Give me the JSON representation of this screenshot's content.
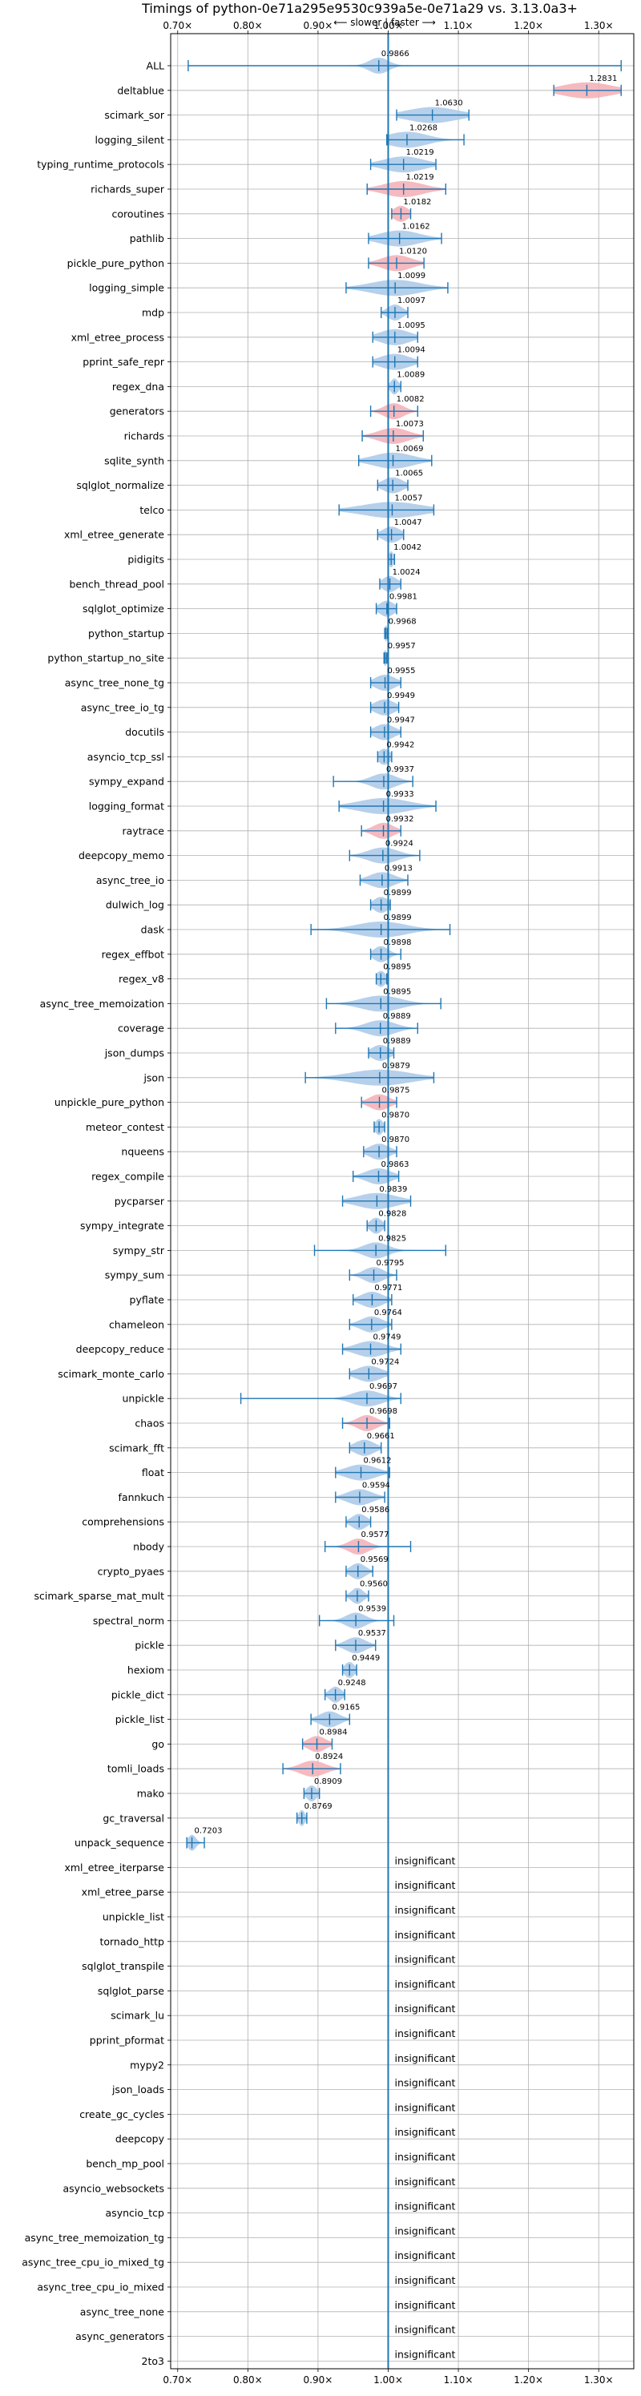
{
  "chart_data": {
    "type": "violin",
    "title": "Timings of python-0e71a295e9530c939a5e-0e71a29 vs. 3.13.0a3+",
    "subtitle": "⟵ slower | faster ⟶",
    "xlim": [
      0.69,
      1.35
    ],
    "xticks": [
      0.7,
      0.8,
      0.9,
      1.0,
      1.1,
      1.2,
      1.3
    ],
    "xtick_labels": [
      "0.70×",
      "0.80×",
      "0.90×",
      "1.00×",
      "1.10×",
      "1.20×",
      "1.30×"
    ],
    "reference_line": 1.0,
    "grid": true,
    "colors": {
      "faster": "#a9c8e8",
      "slower": "#f3aeb4",
      "line": "#1f77b4"
    },
    "benchmarks": [
      {
        "name": "ALL",
        "value": 0.9866,
        "min": 0.715,
        "max": 1.332,
        "color": "faster",
        "spread": 0.02,
        "label": "0.9866"
      },
      {
        "name": "deltablue",
        "value": 1.2831,
        "min": 1.236,
        "max": 1.332,
        "color": "slower",
        "spread": 0.05,
        "label": "1.2831"
      },
      {
        "name": "scimark_sor",
        "value": 1.063,
        "min": 1.012,
        "max": 1.115,
        "color": "faster",
        "spread": 0.05,
        "label": "1.0630"
      },
      {
        "name": "logging_silent",
        "value": 1.0268,
        "min": 0.998,
        "max": 1.108,
        "color": "faster",
        "spread": 0.04,
        "label": "1.0268"
      },
      {
        "name": "typing_runtime_protocols",
        "value": 1.0219,
        "min": 0.975,
        "max": 1.068,
        "color": "faster",
        "spread": 0.04,
        "label": "1.0219"
      },
      {
        "name": "richards_super",
        "value": 1.0219,
        "min": 0.97,
        "max": 1.082,
        "color": "slower",
        "spread": 0.04,
        "label": "1.0219"
      },
      {
        "name": "coroutines",
        "value": 1.0182,
        "min": 1.005,
        "max": 1.032,
        "color": "slower",
        "spread": 0.015,
        "label": "1.0182"
      },
      {
        "name": "pathlib",
        "value": 1.0162,
        "min": 0.972,
        "max": 1.076,
        "color": "faster",
        "spread": 0.04,
        "label": "1.0162"
      },
      {
        "name": "pickle_pure_python",
        "value": 1.012,
        "min": 0.972,
        "max": 1.051,
        "color": "slower",
        "spread": 0.03,
        "label": "1.0120"
      },
      {
        "name": "logging_simple",
        "value": 1.0099,
        "min": 0.94,
        "max": 1.085,
        "color": "faster",
        "spread": 0.05,
        "label": "1.0099"
      },
      {
        "name": "mdp",
        "value": 1.0097,
        "min": 0.99,
        "max": 1.028,
        "color": "faster",
        "spread": 0.015,
        "label": "1.0097"
      },
      {
        "name": "xml_etree_process",
        "value": 1.0095,
        "min": 0.978,
        "max": 1.042,
        "color": "faster",
        "spread": 0.03,
        "label": "1.0095"
      },
      {
        "name": "pprint_safe_repr",
        "value": 1.0094,
        "min": 0.978,
        "max": 1.042,
        "color": "faster",
        "spread": 0.03,
        "label": "1.0094"
      },
      {
        "name": "regex_dna",
        "value": 1.0089,
        "min": 1.0,
        "max": 1.018,
        "color": "faster",
        "spread": 0.008,
        "label": "1.0089"
      },
      {
        "name": "generators",
        "value": 1.0082,
        "min": 0.975,
        "max": 1.042,
        "color": "slower",
        "spread": 0.02,
        "label": "1.0082"
      },
      {
        "name": "richards",
        "value": 1.0073,
        "min": 0.963,
        "max": 1.05,
        "color": "slower",
        "spread": 0.03,
        "label": "1.0073"
      },
      {
        "name": "sqlite_synth",
        "value": 1.0069,
        "min": 0.958,
        "max": 1.062,
        "color": "faster",
        "spread": 0.04,
        "label": "1.0069"
      },
      {
        "name": "sqlglot_normalize",
        "value": 1.0065,
        "min": 0.985,
        "max": 1.028,
        "color": "faster",
        "spread": 0.02,
        "label": "1.0065"
      },
      {
        "name": "telco",
        "value": 1.0057,
        "min": 0.93,
        "max": 1.065,
        "color": "faster",
        "spread": 0.06,
        "label": "1.0057"
      },
      {
        "name": "xml_etree_generate",
        "value": 1.0047,
        "min": 0.985,
        "max": 1.022,
        "color": "faster",
        "spread": 0.018,
        "label": "1.0047"
      },
      {
        "name": "pidigits",
        "value": 1.0042,
        "min": 1.0,
        "max": 1.009,
        "color": "faster",
        "spread": 0.005,
        "label": "1.0042"
      },
      {
        "name": "bench_thread_pool",
        "value": 1.0024,
        "min": 0.988,
        "max": 1.018,
        "color": "faster",
        "spread": 0.015,
        "label": "1.0024"
      },
      {
        "name": "sqlglot_optimize",
        "value": 0.9981,
        "min": 0.983,
        "max": 1.012,
        "color": "faster",
        "spread": 0.015,
        "label": "0.9981"
      },
      {
        "name": "python_startup",
        "value": 0.9968,
        "min": 0.995,
        "max": 0.999,
        "color": "faster",
        "spread": 0.003,
        "label": "0.9968"
      },
      {
        "name": "python_startup_no_site",
        "value": 0.9957,
        "min": 0.994,
        "max": 0.998,
        "color": "faster",
        "spread": 0.003,
        "label": "0.9957"
      },
      {
        "name": "async_tree_none_tg",
        "value": 0.9955,
        "min": 0.975,
        "max": 1.018,
        "color": "faster",
        "spread": 0.02,
        "label": "0.9955"
      },
      {
        "name": "async_tree_io_tg",
        "value": 0.9949,
        "min": 0.975,
        "max": 1.015,
        "color": "faster",
        "spread": 0.02,
        "label": "0.9949"
      },
      {
        "name": "docutils",
        "value": 0.9947,
        "min": 0.975,
        "max": 1.018,
        "color": "faster",
        "spread": 0.02,
        "label": "0.9947"
      },
      {
        "name": "asyncio_tcp_ssl",
        "value": 0.9942,
        "min": 0.985,
        "max": 1.005,
        "color": "faster",
        "spread": 0.012,
        "label": "0.9942"
      },
      {
        "name": "sympy_expand",
        "value": 0.9937,
        "min": 0.922,
        "max": 1.035,
        "color": "faster",
        "spread": 0.025,
        "label": "0.9937"
      },
      {
        "name": "logging_format",
        "value": 0.9933,
        "min": 0.93,
        "max": 1.068,
        "color": "faster",
        "spread": 0.05,
        "label": "0.9933"
      },
      {
        "name": "raytrace",
        "value": 0.9932,
        "min": 0.962,
        "max": 1.018,
        "color": "slower",
        "spread": 0.02,
        "label": "0.9932"
      },
      {
        "name": "deepcopy_memo",
        "value": 0.9924,
        "min": 0.945,
        "max": 1.045,
        "color": "faster",
        "spread": 0.03,
        "label": "0.9924"
      },
      {
        "name": "async_tree_io",
        "value": 0.9913,
        "min": 0.96,
        "max": 1.028,
        "color": "faster",
        "spread": 0.025,
        "label": "0.9913"
      },
      {
        "name": "dulwich_log",
        "value": 0.9899,
        "min": 0.975,
        "max": 1.003,
        "color": "faster",
        "spread": 0.015,
        "label": "0.9899"
      },
      {
        "name": "dask",
        "value": 0.9899,
        "min": 0.89,
        "max": 1.088,
        "color": "faster",
        "spread": 0.05,
        "label": "0.9899"
      },
      {
        "name": "regex_effbot",
        "value": 0.9898,
        "min": 0.975,
        "max": 1.018,
        "color": "faster",
        "spread": 0.015,
        "label": "0.9898"
      },
      {
        "name": "regex_v8",
        "value": 0.9895,
        "min": 0.983,
        "max": 0.998,
        "color": "faster",
        "spread": 0.01,
        "label": "0.9895"
      },
      {
        "name": "async_tree_memoization",
        "value": 0.9895,
        "min": 0.912,
        "max": 1.075,
        "color": "faster",
        "spread": 0.04,
        "label": "0.9895"
      },
      {
        "name": "coverage",
        "value": 0.9889,
        "min": 0.925,
        "max": 1.042,
        "color": "faster",
        "spread": 0.03,
        "label": "0.9889"
      },
      {
        "name": "json_dumps",
        "value": 0.9889,
        "min": 0.972,
        "max": 1.008,
        "color": "faster",
        "spread": 0.018,
        "label": "0.9889"
      },
      {
        "name": "json",
        "value": 0.9879,
        "min": 0.882,
        "max": 1.065,
        "color": "faster",
        "spread": 0.06,
        "label": "0.9879"
      },
      {
        "name": "unpickle_pure_python",
        "value": 0.9875,
        "min": 0.962,
        "max": 1.012,
        "color": "slower",
        "spread": 0.02,
        "label": "0.9875"
      },
      {
        "name": "meteor_contest",
        "value": 0.987,
        "min": 0.98,
        "max": 0.995,
        "color": "faster",
        "spread": 0.008,
        "label": "0.9870"
      },
      {
        "name": "nqueens",
        "value": 0.987,
        "min": 0.965,
        "max": 1.012,
        "color": "faster",
        "spread": 0.02,
        "label": "0.9870"
      },
      {
        "name": "regex_compile",
        "value": 0.9863,
        "min": 0.95,
        "max": 1.015,
        "color": "faster",
        "spread": 0.025,
        "label": "0.9863"
      },
      {
        "name": "pycparser",
        "value": 0.9839,
        "min": 0.935,
        "max": 1.032,
        "color": "faster",
        "spread": 0.04,
        "label": "0.9839"
      },
      {
        "name": "sympy_integrate",
        "value": 0.9828,
        "min": 0.97,
        "max": 0.995,
        "color": "faster",
        "spread": 0.012,
        "label": "0.9828"
      },
      {
        "name": "sympy_str",
        "value": 0.9825,
        "min": 0.895,
        "max": 1.082,
        "color": "faster",
        "spread": 0.025,
        "label": "0.9825"
      },
      {
        "name": "sympy_sum",
        "value": 0.9795,
        "min": 0.945,
        "max": 1.012,
        "color": "faster",
        "spread": 0.02,
        "label": "0.9795"
      },
      {
        "name": "pyflate",
        "value": 0.9771,
        "min": 0.95,
        "max": 1.005,
        "color": "faster",
        "spread": 0.022,
        "label": "0.9771"
      },
      {
        "name": "chameleon",
        "value": 0.9764,
        "min": 0.945,
        "max": 1.005,
        "color": "faster",
        "spread": 0.022,
        "label": "0.9764"
      },
      {
        "name": "deepcopy_reduce",
        "value": 0.9749,
        "min": 0.935,
        "max": 1.018,
        "color": "faster",
        "spread": 0.03,
        "label": "0.9749"
      },
      {
        "name": "scimark_monte_carlo",
        "value": 0.9724,
        "min": 0.945,
        "max": 1.0,
        "color": "faster",
        "spread": 0.025,
        "label": "0.9724"
      },
      {
        "name": "unpickle",
        "value": 0.9697,
        "min": 0.79,
        "max": 1.018,
        "color": "faster",
        "spread": 0.03,
        "label": "0.9697"
      },
      {
        "name": "chaos",
        "value": 0.9698,
        "min": 0.935,
        "max": 1.002,
        "color": "slower",
        "spread": 0.02,
        "label": "0.9698"
      },
      {
        "name": "scimark_fft",
        "value": 0.9661,
        "min": 0.945,
        "max": 0.99,
        "color": "faster",
        "spread": 0.02,
        "label": "0.9661"
      },
      {
        "name": "float",
        "value": 0.9612,
        "min": 0.925,
        "max": 1.002,
        "color": "faster",
        "spread": 0.03,
        "label": "0.9612"
      },
      {
        "name": "fannkuch",
        "value": 0.9594,
        "min": 0.925,
        "max": 0.995,
        "color": "faster",
        "spread": 0.025,
        "label": "0.9594"
      },
      {
        "name": "comprehensions",
        "value": 0.9586,
        "min": 0.94,
        "max": 0.975,
        "color": "faster",
        "spread": 0.015,
        "label": "0.9586"
      },
      {
        "name": "nbody",
        "value": 0.9577,
        "min": 0.91,
        "max": 1.032,
        "color": "slower",
        "spread": 0.02,
        "label": "0.9577"
      },
      {
        "name": "crypto_pyaes",
        "value": 0.9569,
        "min": 0.94,
        "max": 0.978,
        "color": "faster",
        "spread": 0.015,
        "label": "0.9569"
      },
      {
        "name": "scimark_sparse_mat_mult",
        "value": 0.956,
        "min": 0.94,
        "max": 0.972,
        "color": "faster",
        "spread": 0.012,
        "label": "0.9560"
      },
      {
        "name": "spectral_norm",
        "value": 0.9539,
        "min": 0.902,
        "max": 1.008,
        "color": "faster",
        "spread": 0.02,
        "label": "0.9539"
      },
      {
        "name": "pickle",
        "value": 0.9537,
        "min": 0.925,
        "max": 0.982,
        "color": "faster",
        "spread": 0.02,
        "label": "0.9537"
      },
      {
        "name": "hexiom",
        "value": 0.9449,
        "min": 0.935,
        "max": 0.955,
        "color": "faster",
        "spread": 0.01,
        "label": "0.9449"
      },
      {
        "name": "pickle_dict",
        "value": 0.9248,
        "min": 0.91,
        "max": 0.938,
        "color": "faster",
        "spread": 0.012,
        "label": "0.9248"
      },
      {
        "name": "pickle_list",
        "value": 0.9165,
        "min": 0.89,
        "max": 0.945,
        "color": "faster",
        "spread": 0.02,
        "label": "0.9165"
      },
      {
        "name": "go",
        "value": 0.8984,
        "min": 0.878,
        "max": 0.92,
        "color": "slower",
        "spread": 0.018,
        "label": "0.8984"
      },
      {
        "name": "tomli_loads",
        "value": 0.8924,
        "min": 0.85,
        "max": 0.932,
        "color": "slower",
        "spread": 0.025,
        "label": "0.8924"
      },
      {
        "name": "mako",
        "value": 0.8909,
        "min": 0.88,
        "max": 0.902,
        "color": "faster",
        "spread": 0.01,
        "label": "0.8909"
      },
      {
        "name": "gc_traversal",
        "value": 0.8769,
        "min": 0.87,
        "max": 0.884,
        "color": "faster",
        "spread": 0.006,
        "label": "0.8769"
      },
      {
        "name": "unpack_sequence",
        "value": 0.7203,
        "min": 0.713,
        "max": 0.738,
        "color": "faster",
        "spread": 0.008,
        "label": "0.7203"
      },
      {
        "name": "xml_etree_iterparse",
        "value": null,
        "label": "insignificant"
      },
      {
        "name": "xml_etree_parse",
        "value": null,
        "label": "insignificant"
      },
      {
        "name": "unpickle_list",
        "value": null,
        "label": "insignificant"
      },
      {
        "name": "tornado_http",
        "value": null,
        "label": "insignificant"
      },
      {
        "name": "sqlglot_transpile",
        "value": null,
        "label": "insignificant"
      },
      {
        "name": "sqlglot_parse",
        "value": null,
        "label": "insignificant"
      },
      {
        "name": "scimark_lu",
        "value": null,
        "label": "insignificant"
      },
      {
        "name": "pprint_pformat",
        "value": null,
        "label": "insignificant"
      },
      {
        "name": "mypy2",
        "value": null,
        "label": "insignificant"
      },
      {
        "name": "json_loads",
        "value": null,
        "label": "insignificant"
      },
      {
        "name": "create_gc_cycles",
        "value": null,
        "label": "insignificant"
      },
      {
        "name": "deepcopy",
        "value": null,
        "label": "insignificant"
      },
      {
        "name": "bench_mp_pool",
        "value": null,
        "label": "insignificant"
      },
      {
        "name": "asyncio_websockets",
        "value": null,
        "label": "insignificant"
      },
      {
        "name": "asyncio_tcp",
        "value": null,
        "label": "insignificant"
      },
      {
        "name": "async_tree_memoization_tg",
        "value": null,
        "label": "insignificant"
      },
      {
        "name": "async_tree_cpu_io_mixed_tg",
        "value": null,
        "label": "insignificant"
      },
      {
        "name": "async_tree_cpu_io_mixed",
        "value": null,
        "label": "insignificant"
      },
      {
        "name": "async_tree_none",
        "value": null,
        "label": "insignificant"
      },
      {
        "name": "async_generators",
        "value": null,
        "label": "insignificant"
      },
      {
        "name": "2to3",
        "value": null,
        "label": "insignificant"
      }
    ]
  }
}
